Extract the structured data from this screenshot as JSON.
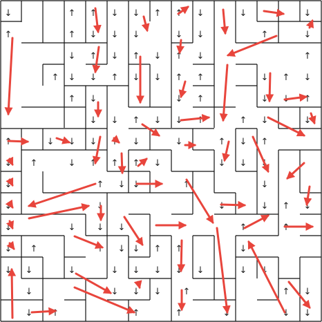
{
  "colors": {
    "background": "#ffffff",
    "wall": "#111111",
    "glyph": "#222222",
    "hint_arrow": "#e8453c"
  },
  "glyphs": {
    "up": "↑",
    "down": "↓"
  },
  "icons": {
    "cell_arrow": "arrow-glyph-icon",
    "hint_arrow": "red-arrow-icon"
  }
}
